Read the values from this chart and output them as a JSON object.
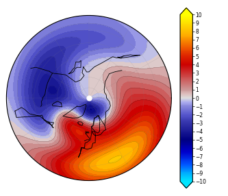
{
  "colorbar_min": -10,
  "colorbar_max": 10,
  "colormap_colors": [
    [
      0.0,
      "#00E5FF"
    ],
    [
      0.05,
      "#00AAFF"
    ],
    [
      0.1,
      "#0055FF"
    ],
    [
      0.175,
      "#0000CC"
    ],
    [
      0.25,
      "#000080"
    ],
    [
      0.35,
      "#3333AA"
    ],
    [
      0.4,
      "#5555CC"
    ],
    [
      0.45,
      "#8888DD"
    ],
    [
      0.475,
      "#AAAAEE"
    ],
    [
      0.5,
      "#DDDDDD"
    ],
    [
      0.525,
      "#DDBBBB"
    ],
    [
      0.55,
      "#CC9999"
    ],
    [
      0.6,
      "#CC6666"
    ],
    [
      0.65,
      "#CC3333"
    ],
    [
      0.7,
      "#CC0000"
    ],
    [
      0.75,
      "#DD2200"
    ],
    [
      0.8,
      "#EE5500"
    ],
    [
      0.875,
      "#FFAA00"
    ],
    [
      0.95,
      "#FFE000"
    ],
    [
      1.0,
      "#FFFF00"
    ]
  ],
  "figsize": [
    3.33,
    2.86
  ],
  "dpi": 100,
  "lat_min": 20,
  "pressure_centers": [
    {
      "lon": -30,
      "lat": 65,
      "val": 8.5,
      "spread_lon": 40,
      "spread_lat": 12
    },
    {
      "lon": -10,
      "lat": 75,
      "val": -9,
      "spread_lon": 50,
      "spread_lat": 10
    },
    {
      "lon": 20,
      "lat": 30,
      "val": 8,
      "spread_lon": 45,
      "spread_lat": 12
    },
    {
      "lon": -130,
      "lat": 40,
      "val": -3,
      "spread_lon": 35,
      "spread_lat": 12
    },
    {
      "lon": 100,
      "lat": 50,
      "val": 2,
      "spread_lon": 40,
      "spread_lat": 15
    },
    {
      "lon": -90,
      "lat": 60,
      "val": -5,
      "spread_lon": 30,
      "spread_lat": 10
    },
    {
      "lon": 150,
      "lat": 35,
      "val": -2,
      "spread_lon": 35,
      "spread_lat": 12
    },
    {
      "lon": -60,
      "lat": 40,
      "val": -3,
      "spread_lon": 30,
      "spread_lat": 10
    },
    {
      "lon": 50,
      "lat": 55,
      "val": 1.5,
      "spread_lon": 35,
      "spread_lat": 12
    }
  ]
}
